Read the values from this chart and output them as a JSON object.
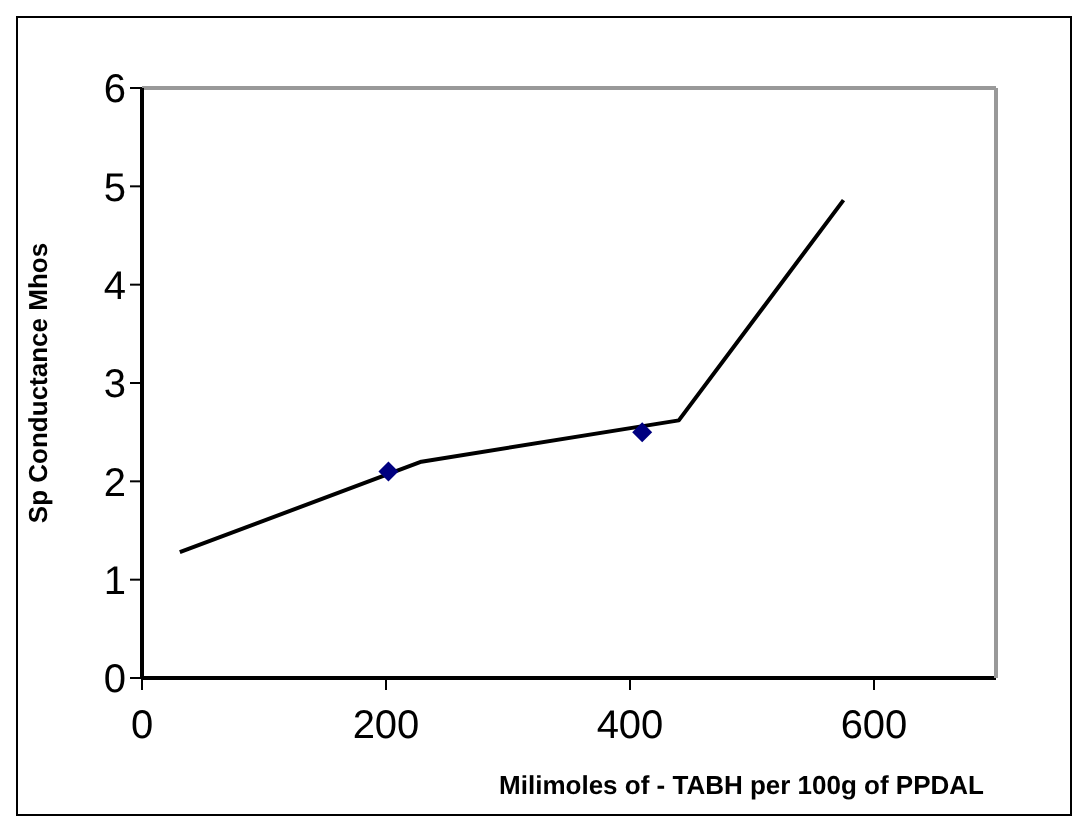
{
  "chart_data": {
    "type": "line",
    "xlabel": "Milimoles of - TABH per 100g of PPDAL",
    "ylabel": "Sp Conductance Mhos",
    "series": [
      {
        "color": "#000000",
        "marker": "none",
        "x": [
          31,
          229,
          440,
          575
        ],
        "values": [
          1.28,
          2.2,
          2.62,
          4.86
        ]
      },
      {
        "type": "scatter",
        "color": "#000080",
        "marker": "diamond",
        "x": [
          202,
          410
        ],
        "values": [
          2.1,
          2.5
        ]
      }
    ],
    "xlim": [
      0,
      700
    ],
    "xticks": [
      0,
      200,
      400,
      600
    ],
    "ylim": [
      0,
      6
    ],
    "yticks": [
      0,
      1,
      2,
      3,
      4,
      5,
      6
    ]
  }
}
